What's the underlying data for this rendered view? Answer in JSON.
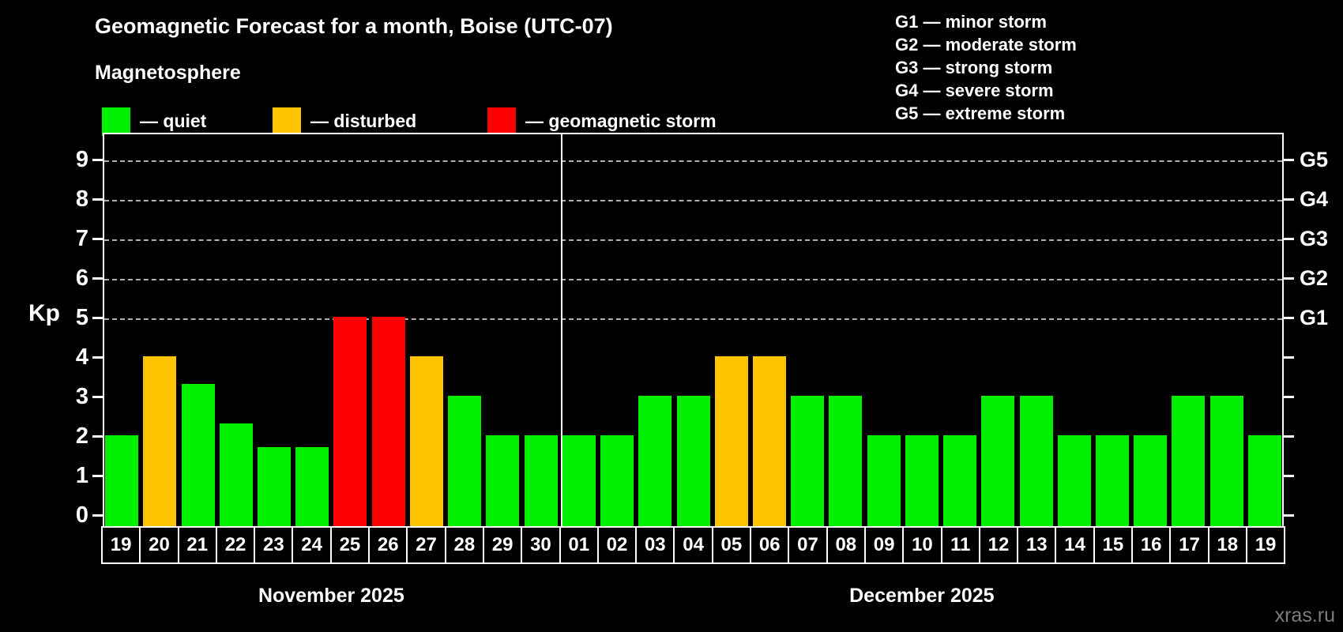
{
  "header": {
    "title": "Geomagnetic Forecast for a month, Boise (UTC-07)",
    "subtitle": "Magnetosphere"
  },
  "legend": {
    "items": [
      {
        "name": "quiet",
        "label": "— quiet",
        "color": "#00f000"
      },
      {
        "name": "disturbed",
        "label": "— disturbed",
        "color": "#ffc400"
      },
      {
        "name": "storm",
        "label": "— geomagnetic storm",
        "color": "#ff0000"
      }
    ]
  },
  "g_legend": {
    "lines": [
      "G1 — minor storm",
      "G2 — moderate storm",
      "G3 — strong storm",
      "G4 — severe storm",
      "G5 — extreme storm"
    ]
  },
  "watermark": "xras.ru",
  "chart_data": {
    "type": "bar",
    "title": "Geomagnetic Forecast for a month, Boise (UTC-07)",
    "ylabel": "Kp",
    "ylim": [
      0,
      9
    ],
    "y_ticks": [
      0,
      1,
      2,
      3,
      4,
      5,
      6,
      7,
      8,
      9
    ],
    "gridlines_at_kp": [
      5,
      6,
      7,
      8,
      9
    ],
    "right_axis": [
      {
        "kp": 5,
        "label": "G1"
      },
      {
        "kp": 6,
        "label": "G2"
      },
      {
        "kp": 7,
        "label": "G3"
      },
      {
        "kp": 8,
        "label": "G4"
      },
      {
        "kp": 9,
        "label": "G5"
      }
    ],
    "status_colors": {
      "quiet": "#00f000",
      "disturbed": "#ffc400",
      "storm": "#ff0000"
    },
    "months": [
      {
        "label": "November 2025",
        "categories": [
          "19",
          "20",
          "21",
          "22",
          "23",
          "24",
          "25",
          "26",
          "27",
          "28",
          "29",
          "30"
        ],
        "values": [
          2.0,
          4.0,
          3.3,
          2.3,
          1.7,
          1.7,
          5.0,
          5.0,
          4.0,
          3.0,
          2.0,
          2.0
        ],
        "status": [
          "quiet",
          "disturbed",
          "quiet",
          "quiet",
          "quiet",
          "quiet",
          "storm",
          "storm",
          "disturbed",
          "quiet",
          "quiet",
          "quiet"
        ]
      },
      {
        "label": "December 2025",
        "categories": [
          "01",
          "02",
          "03",
          "04",
          "05",
          "06",
          "07",
          "08",
          "09",
          "10",
          "11",
          "12",
          "13",
          "14",
          "15",
          "16",
          "17",
          "18",
          "19"
        ],
        "values": [
          2,
          2,
          3,
          3,
          4,
          4,
          3,
          3,
          2,
          2,
          2,
          3,
          3,
          2,
          2,
          2,
          3,
          3,
          2
        ],
        "status": [
          "quiet",
          "quiet",
          "quiet",
          "quiet",
          "disturbed",
          "disturbed",
          "quiet",
          "quiet",
          "quiet",
          "quiet",
          "quiet",
          "quiet",
          "quiet",
          "quiet",
          "quiet",
          "quiet",
          "quiet",
          "quiet",
          "quiet"
        ]
      }
    ]
  }
}
